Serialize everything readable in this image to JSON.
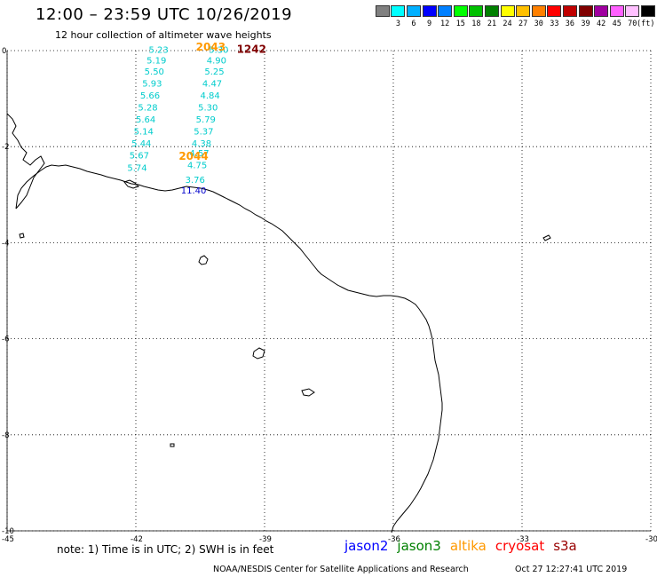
{
  "header": {
    "title": "12:00 – 23:59 UTC 10/26/2019",
    "subtitle": "12 hour collection of altimeter wave heights"
  },
  "legend": {
    "unit": "(ft)",
    "items": [
      {
        "label": "",
        "color": "#808080"
      },
      {
        "label": "3",
        "color": "#00ffff"
      },
      {
        "label": "6",
        "color": "#00b0ff"
      },
      {
        "label": "9",
        "color": "#0000ff"
      },
      {
        "label": "12",
        "color": "#0080ff"
      },
      {
        "label": "15",
        "color": "#00ff00"
      },
      {
        "label": "18",
        "color": "#00c000"
      },
      {
        "label": "21",
        "color": "#008000"
      },
      {
        "label": "24",
        "color": "#ffff00"
      },
      {
        "label": "27",
        "color": "#ffc000"
      },
      {
        "label": "30",
        "color": "#ff8000"
      },
      {
        "label": "33",
        "color": "#ff0000"
      },
      {
        "label": "36",
        "color": "#c00000"
      },
      {
        "label": "39",
        "color": "#800000"
      },
      {
        "label": "42",
        "color": "#a000a0"
      },
      {
        "label": "45",
        "color": "#ff60ff"
      },
      {
        "label": "70",
        "color": "#ffc0ff"
      },
      {
        "label": "",
        "color": "#000000"
      }
    ]
  },
  "map": {
    "x_ticks": [
      "-45",
      "-42",
      "-39",
      "-36",
      "-33",
      "-30"
    ],
    "y_ticks": [
      "0",
      "-2",
      "-4",
      "-6",
      "-8",
      "-10"
    ],
    "swh_track_a": [
      {
        "lon": -41.7,
        "lat": -0.05,
        "text": "5.23"
      },
      {
        "lon": -41.75,
        "lat": -0.27,
        "text": "5.19"
      },
      {
        "lon": -41.8,
        "lat": -0.5,
        "text": "5.50"
      },
      {
        "lon": -41.85,
        "lat": -0.75,
        "text": "5.93"
      },
      {
        "lon": -41.9,
        "lat": -1.0,
        "text": "5.66"
      },
      {
        "lon": -41.95,
        "lat": -1.25,
        "text": "5.28"
      },
      {
        "lon": -42.0,
        "lat": -1.5,
        "text": "5.64"
      },
      {
        "lon": -42.05,
        "lat": -1.75,
        "text": "5.14"
      },
      {
        "lon": -42.1,
        "lat": -2.0,
        "text": "5.44"
      },
      {
        "lon": -42.15,
        "lat": -2.25,
        "text": "5.67"
      },
      {
        "lon": -42.2,
        "lat": -2.5,
        "text": "5.74"
      }
    ],
    "swh_track_b": [
      {
        "lon": -40.3,
        "lat": -0.05,
        "text": "5.30"
      },
      {
        "lon": -40.35,
        "lat": -0.27,
        "text": "4.90"
      },
      {
        "lon": -40.4,
        "lat": -0.5,
        "text": "5.25"
      },
      {
        "lon": -40.45,
        "lat": -0.75,
        "text": "4.47"
      },
      {
        "lon": -40.5,
        "lat": -1.0,
        "text": "4.84"
      },
      {
        "lon": -40.55,
        "lat": -1.25,
        "text": "5.30"
      },
      {
        "lon": -40.6,
        "lat": -1.5,
        "text": "5.79"
      },
      {
        "lon": -40.65,
        "lat": -1.75,
        "text": "5.37"
      },
      {
        "lon": -40.7,
        "lat": -2.0,
        "text": "4.38"
      },
      {
        "lon": -40.75,
        "lat": -2.2,
        "text": "4.57"
      },
      {
        "lon": -40.8,
        "lat": -2.45,
        "text": "4.75"
      },
      {
        "lon": -40.85,
        "lat": -2.75,
        "text": "3.76"
      }
    ],
    "swh_special": {
      "lon": -40.95,
      "lat": -2.98,
      "text": "11.40"
    },
    "time_labels": [
      {
        "lon": -40.6,
        "lat": 0.0,
        "text": "2043",
        "color": "#ff9900"
      },
      {
        "lon": -41.0,
        "lat": -2.27,
        "text": "2044",
        "color": "#ff9900"
      },
      {
        "lon": -39.65,
        "lat": -0.05,
        "text": "1242",
        "color": "#800000"
      }
    ]
  },
  "footer": {
    "note": "note:  1) Time is in UTC;  2) SWH is in feet",
    "satellites": [
      {
        "name": "jason2",
        "color": "#0000ff"
      },
      {
        "name": "jason3",
        "color": "#008000"
      },
      {
        "name": "altika",
        "color": "#ff9900"
      },
      {
        "name": "cryosat",
        "color": "#ff0000"
      },
      {
        "name": "s3a",
        "color": "#990000"
      }
    ],
    "credit": "NOAA/NESDIS Center for Satellite Applications and Research",
    "timestamp": "Oct 27 12:27:41 UTC 2019"
  }
}
